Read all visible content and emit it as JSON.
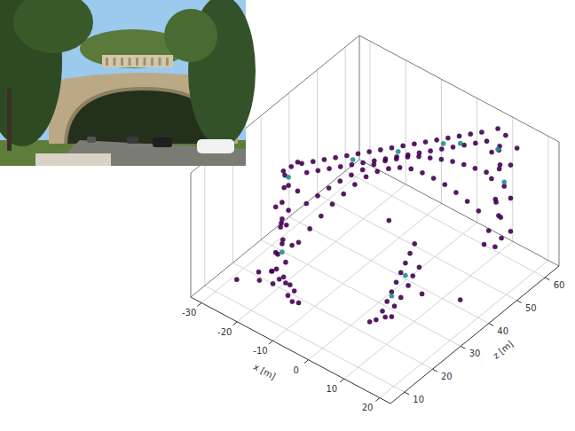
{
  "chart_data": {
    "type": "scatter3d",
    "xlabel": "x [m]",
    "zlabel": "z [m]",
    "xlim": [
      -33,
      23
    ],
    "xticks": [
      -30,
      -20,
      -10,
      0,
      10,
      20
    ],
    "zlim": [
      5,
      65
    ],
    "zticks": [
      10,
      20,
      30,
      40,
      50,
      60
    ],
    "ylim": [
      0,
      15
    ],
    "grid": true,
    "series": [
      {
        "color": "#440154",
        "x": [
          -21,
          -20,
          -19,
          -22,
          -20,
          -19,
          -21,
          -20,
          -19,
          -21,
          -20,
          -19,
          -20,
          -21,
          -19,
          -20,
          -19,
          -18,
          -22,
          -23,
          -18,
          -17,
          -18,
          -22,
          -18,
          -21,
          -18,
          -22,
          -16,
          -14,
          -15,
          -13,
          -24,
          -25,
          -17,
          -16,
          -17.5,
          -16.5,
          -15.5,
          -14.5,
          -16,
          -15,
          -14,
          -13,
          -14.5,
          -13.5,
          -12.5,
          -11.5,
          -13,
          -12,
          -11,
          -10,
          -11.5,
          -10.5,
          -9.5,
          -8.5,
          -10,
          -9,
          -8,
          -7,
          -8.5,
          -7.5,
          -6.5,
          -5.5,
          -7,
          -6,
          -5,
          -4,
          -5.5,
          -4.5,
          -3.5,
          -2.5,
          -4,
          -3,
          -2,
          -1,
          -2.5,
          -1.5,
          -0.5,
          0.5,
          -1,
          0,
          1,
          2,
          0.5,
          1.5,
          2.5,
          3.5,
          2,
          3,
          4,
          5,
          3.5,
          4.5,
          5.5,
          6.5,
          5,
          6,
          7,
          8,
          6.5,
          7.5,
          9,
          10,
          8,
          9,
          10,
          8.5,
          9.5,
          10,
          8,
          9,
          10,
          8.5,
          9.5,
          10,
          9,
          11,
          11,
          11,
          7.5,
          12,
          4,
          5,
          5.5,
          6,
          6.5,
          7,
          7.5,
          8,
          8.5,
          5,
          6,
          7,
          7.5,
          8,
          9,
          6,
          3,
          9,
          -5,
          15,
          -28,
          12
        ],
        "values": [
          0.5,
          1,
          0.5,
          1.5,
          2.5,
          3,
          4,
          5,
          6,
          7,
          8,
          9,
          10,
          11,
          12,
          13,
          14,
          14.5,
          3,
          1,
          2,
          1,
          5,
          6,
          8,
          9.5,
          11,
          12.5,
          0.5,
          0.5,
          1,
          0.3,
          0.5,
          1,
          14.5,
          13.5,
          5,
          9.5,
          14.5,
          13.5,
          6.4,
          10.2,
          14.5,
          13.5,
          7.7,
          10.9,
          14.5,
          13.5,
          8.9,
          11.5,
          14.5,
          13.5,
          9.9,
          12,
          14.5,
          13.5,
          10.8,
          12.4,
          14.5,
          13.5,
          11.5,
          12.8,
          14.5,
          13.5,
          11.9,
          13,
          14.5,
          13.5,
          12,
          13,
          14.5,
          13.5,
          11.9,
          13,
          14.5,
          13.5,
          11.5,
          12.8,
          14.5,
          13.5,
          10.8,
          12.4,
          14.5,
          13.5,
          9.9,
          12,
          14.5,
          13.5,
          8.9,
          11.5,
          14.5,
          13.5,
          7.7,
          10.9,
          14.5,
          13.5,
          6.4,
          10.2,
          14.5,
          13.5,
          5,
          9.5,
          0.5,
          1.5,
          2.5,
          3.5,
          4.5,
          5.5,
          6.5,
          7.5,
          8.5,
          9.5,
          10.5,
          11.5,
          12.5,
          13.5,
          14.5,
          2,
          6,
          10,
          1,
          12,
          0.5,
          1.5,
          2.5,
          3.5,
          4.5,
          5.5,
          6.5,
          7.5,
          8.5,
          0.5,
          1.5,
          2.5,
          3.5,
          4.5,
          5.5,
          0.5,
          0.3,
          2,
          6,
          1,
          0.5,
          14
        ],
        "z": [
          19,
          20,
          21,
          20,
          19,
          21,
          20,
          21,
          20,
          22,
          21,
          22,
          21,
          23,
          22,
          22,
          23,
          24,
          22,
          21,
          19,
          20,
          22,
          23,
          20,
          20,
          24,
          24,
          18,
          17,
          19,
          18,
          18,
          19,
          24.2,
          24.7,
          23.7,
          25.2,
          26.3,
          26.8,
          25.8,
          27.3,
          28.4,
          28.9,
          27.9,
          29.4,
          30.5,
          31,
          30,
          31.5,
          32.6,
          33.1,
          32.1,
          33.6,
          34.7,
          35.2,
          34.2,
          35.7,
          36.8,
          37.3,
          36.3,
          37.8,
          38.9,
          39.4,
          38.4,
          39.9,
          41,
          41.5,
          40.5,
          42,
          43.1,
          43.6,
          42.6,
          44.1,
          45.2,
          45.7,
          44.7,
          46.2,
          47.3,
          47.8,
          46.8,
          48.3,
          49.4,
          49.9,
          48.9,
          50.4,
          51.5,
          52,
          51,
          52.5,
          53.6,
          54.1,
          53.1,
          54.6,
          55.7,
          56.2,
          55.2,
          56.7,
          57.8,
          58.3,
          57.3,
          58.8,
          60,
          61,
          59,
          62,
          60,
          61,
          59.5,
          62,
          60,
          61.5,
          60.5,
          62,
          61,
          62.5,
          61,
          63,
          63,
          63,
          58,
          64,
          24,
          25,
          26,
          27,
          28,
          29,
          30,
          31,
          32,
          26,
          28,
          29,
          31,
          32,
          33,
          27,
          23,
          34,
          40,
          40,
          15,
          55
        ]
      },
      {
        "color": "#21918c",
        "x": [
          -19,
          -20,
          -10,
          -4,
          2,
          4,
          9,
          10,
          6,
          7.5
        ],
        "values": [
          13,
          4,
          14,
          14,
          14,
          13.5,
          12,
          8,
          3,
          5
        ],
        "z": [
          22,
          21,
          33.5,
          42,
          50.5,
          54,
          61,
          62,
          27,
          30
        ]
      }
    ]
  }
}
